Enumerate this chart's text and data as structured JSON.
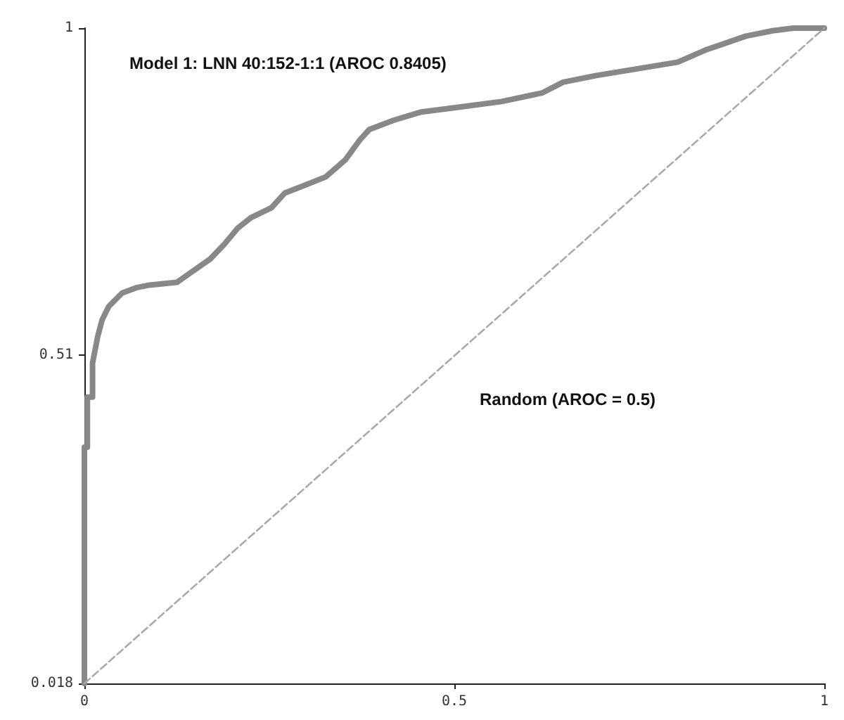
{
  "chart_data": {
    "type": "line",
    "xlim": [
      0,
      1
    ],
    "ylim": [
      0.018,
      1
    ],
    "xticks": [
      0,
      0.5,
      1
    ],
    "yticks": [
      0.018,
      0.51,
      1
    ],
    "grid": false,
    "marker": "none",
    "series": [
      {
        "color": "#888888",
        "line_style": "solid",
        "x": [
          0,
          0,
          0.004,
          0.004,
          0.011,
          0.011,
          0.018,
          0.024,
          0.033,
          0.051,
          0.07,
          0.088,
          0.125,
          0.143,
          0.17,
          0.189,
          0.207,
          0.225,
          0.253,
          0.271,
          0.299,
          0.326,
          0.353,
          0.372,
          0.385,
          0.418,
          0.454,
          0.509,
          0.564,
          0.619,
          0.647,
          0.692,
          0.747,
          0.802,
          0.839,
          0.894,
          0.93,
          0.958,
          1
        ],
        "values": [
          0.018,
          0.372,
          0.372,
          0.447,
          0.447,
          0.498,
          0.538,
          0.563,
          0.583,
          0.603,
          0.611,
          0.615,
          0.619,
          0.633,
          0.654,
          0.676,
          0.7,
          0.716,
          0.731,
          0.753,
          0.765,
          0.777,
          0.803,
          0.832,
          0.848,
          0.862,
          0.874,
          0.882,
          0.89,
          0.903,
          0.919,
          0.929,
          0.939,
          0.949,
          0.967,
          0.988,
          0.996,
          1,
          1
        ]
      },
      {
        "color": "#aaaaaa",
        "line_style": "dashed",
        "x": [
          0,
          1
        ],
        "values": [
          0.018,
          1
        ]
      }
    ],
    "annotations": [
      "Model 1: LNN 40:152-1:1 (AROC 0.8405)",
      "Random (AROC = 0.5)"
    ]
  }
}
